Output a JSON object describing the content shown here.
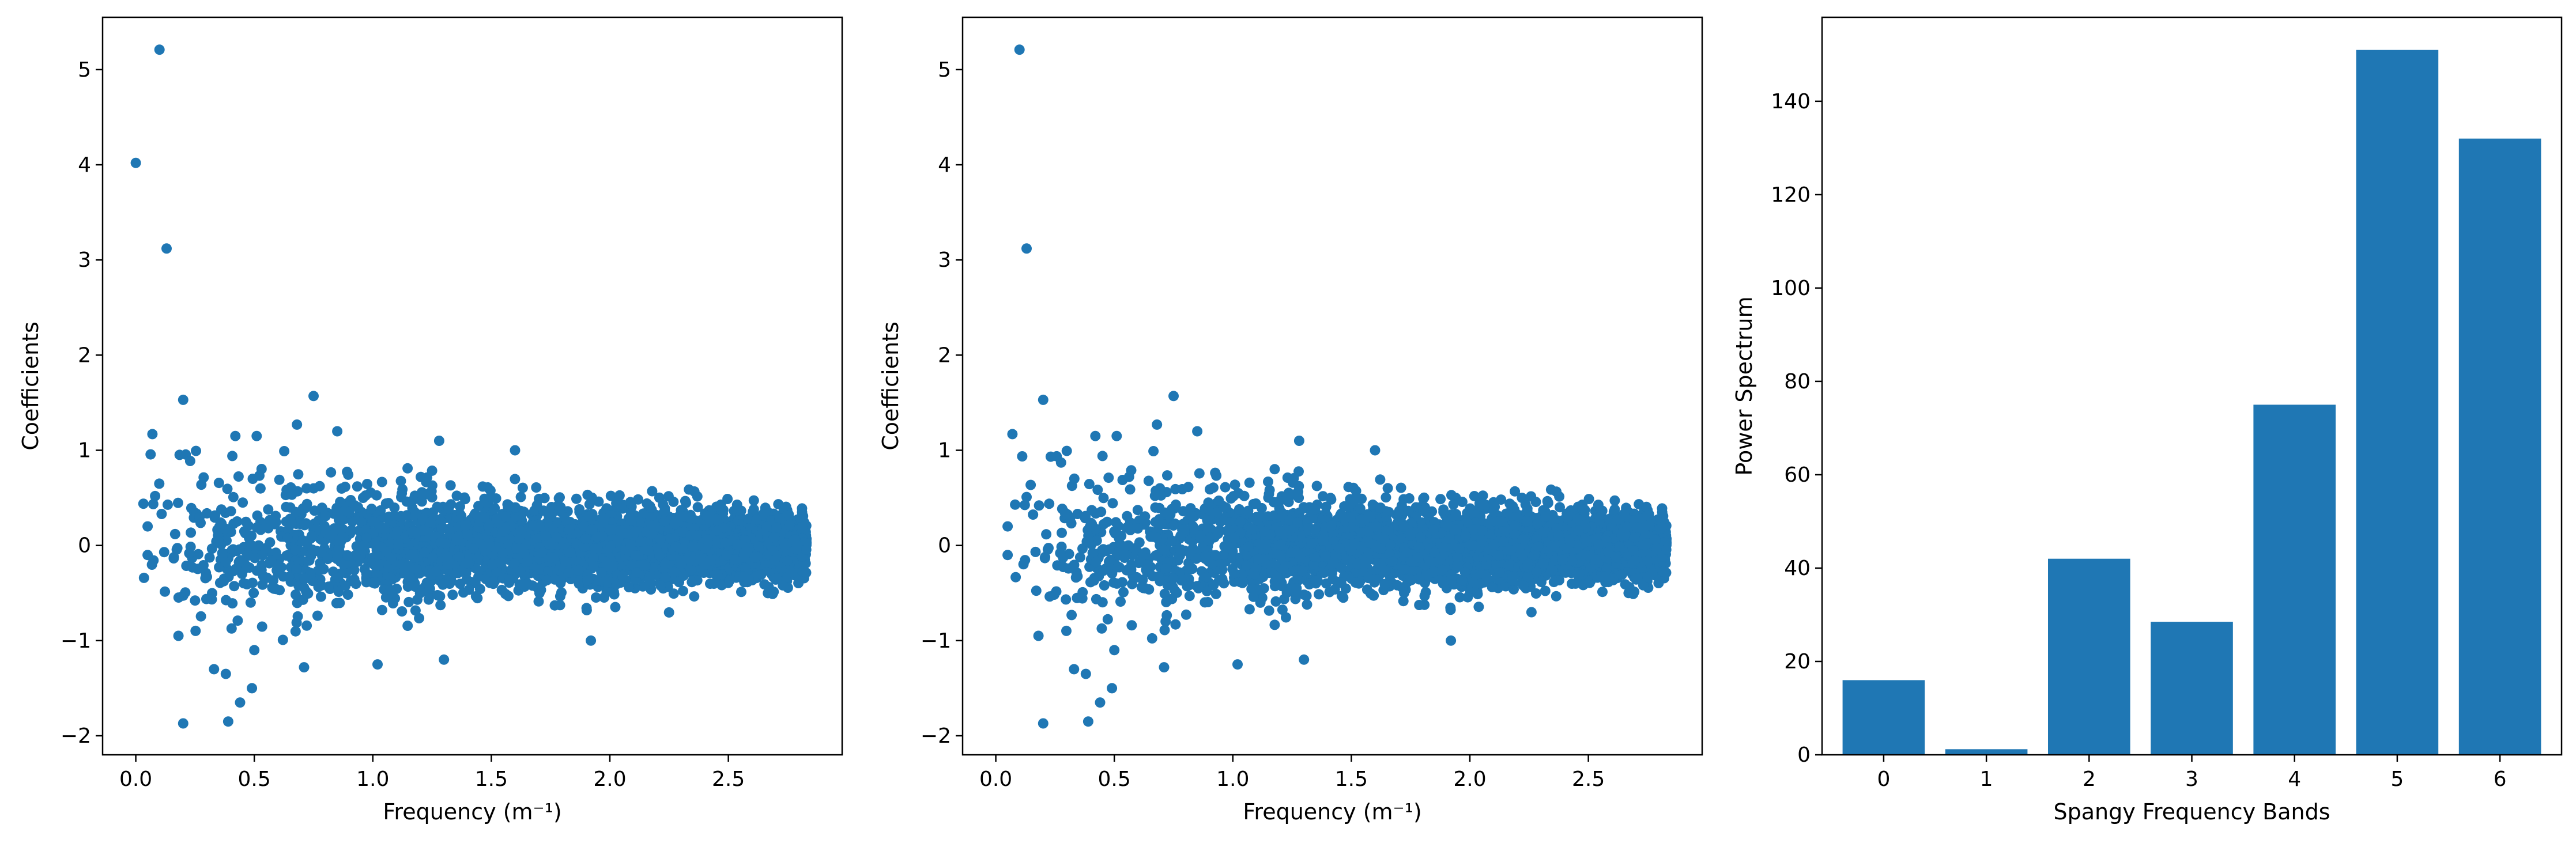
{
  "chart_data": [
    {
      "type": "scatter",
      "xlabel": "Frequency (m⁻¹)",
      "ylabel": "Coefficients",
      "xlim": [
        -0.14,
        2.98
      ],
      "ylim": [
        -2.2,
        5.55
      ],
      "xticks": [
        0.0,
        0.5,
        1.0,
        1.5,
        2.0,
        2.5
      ],
      "xtick_labels": [
        "0.0",
        "0.5",
        "1.0",
        "1.5",
        "2.0",
        "2.5"
      ],
      "yticks": [
        -2,
        -1,
        0,
        1,
        2,
        3,
        4,
        5
      ],
      "ytick_labels": [
        "−2",
        "−1",
        "0",
        "1",
        "2",
        "3",
        "4",
        "5"
      ],
      "color": "#1f77b4",
      "x_range": [
        0.0,
        2.83
      ],
      "points": [
        {
          "x": 0.0,
          "y": 4.02
        },
        {
          "x": 0.1,
          "y": 5.21
        },
        {
          "x": 0.13,
          "y": 3.12
        },
        {
          "x": 0.07,
          "y": 1.17
        },
        {
          "x": 0.2,
          "y": 1.53
        },
        {
          "x": 0.05,
          "y": 0.2
        },
        {
          "x": 0.05,
          "y": -0.1
        },
        {
          "x": 0.2,
          "y": -1.87
        },
        {
          "x": 0.39,
          "y": -1.85
        },
        {
          "x": 0.18,
          "y": -0.95
        },
        {
          "x": 0.33,
          "y": -1.3
        },
        {
          "x": 0.38,
          "y": -1.35
        },
        {
          "x": 0.44,
          "y": -1.65
        },
        {
          "x": 0.49,
          "y": -1.5
        },
        {
          "x": 0.5,
          "y": -1.1
        },
        {
          "x": 0.75,
          "y": 1.57
        },
        {
          "x": 0.42,
          "y": 1.15
        },
        {
          "x": 0.51,
          "y": 1.15
        },
        {
          "x": 0.68,
          "y": 1.27
        },
        {
          "x": 0.85,
          "y": 1.2
        },
        {
          "x": 1.02,
          "y": -1.25
        },
        {
          "x": 0.71,
          "y": -1.28
        },
        {
          "x": 1.3,
          "y": -1.2
        },
        {
          "x": 1.28,
          "y": 1.1
        },
        {
          "x": 1.6,
          "y": 1.0
        },
        {
          "x": 1.92,
          "y": -1.0
        }
      ],
      "cloud_description_values": {
        "core_spread": 0.3,
        "max_spread_low_freq": 1.0
      }
    },
    {
      "type": "scatter",
      "xlabel": "Frequency (m⁻¹)",
      "ylabel": "Coefficients",
      "xlim": [
        -0.14,
        2.98
      ],
      "ylim": [
        -2.2,
        5.55
      ],
      "xticks": [
        0.0,
        0.5,
        1.0,
        1.5,
        2.0,
        2.5
      ],
      "xtick_labels": [
        "0.0",
        "0.5",
        "1.0",
        "1.5",
        "2.0",
        "2.5"
      ],
      "yticks": [
        -2,
        -1,
        0,
        1,
        2,
        3,
        4,
        5
      ],
      "ytick_labels": [
        "−2",
        "−1",
        "0",
        "1",
        "2",
        "3",
        "4",
        "5"
      ],
      "color": "#1f77b4",
      "x_range": [
        0.05,
        2.83
      ],
      "points": [
        {
          "x": 0.1,
          "y": 5.21
        },
        {
          "x": 0.13,
          "y": 3.12
        },
        {
          "x": 0.07,
          "y": 1.17
        },
        {
          "x": 0.2,
          "y": 1.53
        },
        {
          "x": 0.05,
          "y": 0.2
        },
        {
          "x": 0.05,
          "y": -0.1
        },
        {
          "x": 0.2,
          "y": -1.87
        },
        {
          "x": 0.39,
          "y": -1.85
        },
        {
          "x": 0.18,
          "y": -0.95
        },
        {
          "x": 0.33,
          "y": -1.3
        },
        {
          "x": 0.38,
          "y": -1.35
        },
        {
          "x": 0.44,
          "y": -1.65
        },
        {
          "x": 0.49,
          "y": -1.5
        },
        {
          "x": 0.5,
          "y": -1.1
        },
        {
          "x": 0.75,
          "y": 1.57
        },
        {
          "x": 0.42,
          "y": 1.15
        },
        {
          "x": 0.51,
          "y": 1.15
        },
        {
          "x": 0.68,
          "y": 1.27
        },
        {
          "x": 0.85,
          "y": 1.2
        },
        {
          "x": 1.02,
          "y": -1.25
        },
        {
          "x": 0.71,
          "y": -1.28
        },
        {
          "x": 1.3,
          "y": -1.2
        },
        {
          "x": 1.28,
          "y": 1.1
        },
        {
          "x": 1.6,
          "y": 1.0
        },
        {
          "x": 1.92,
          "y": -1.0
        }
      ],
      "cloud_description_values": {
        "core_spread": 0.3,
        "max_spread_low_freq": 1.0
      }
    },
    {
      "type": "bar",
      "xlabel": "Spangy Frequency Bands",
      "ylabel": "Power Spectrum",
      "categories": [
        "0",
        "1",
        "2",
        "3",
        "4",
        "5",
        "6"
      ],
      "values": [
        16,
        1.2,
        42,
        28.5,
        75,
        151,
        132
      ],
      "ylim": [
        0,
        158
      ],
      "yticks": [
        0,
        20,
        40,
        60,
        80,
        100,
        120,
        140
      ],
      "ytick_labels": [
        "0",
        "20",
        "40",
        "60",
        "80",
        "100",
        "120",
        "140"
      ],
      "color": "#1f77b4"
    }
  ]
}
